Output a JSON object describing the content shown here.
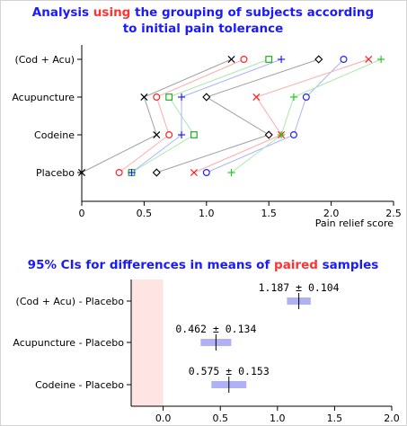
{
  "chart_data": [
    {
      "type": "line",
      "title_parts": [
        {
          "text": "Analysis ",
          "color": "#1a1aff"
        },
        {
          "text": "using",
          "color": "#ff3333"
        },
        {
          "text": " the grouping of subjects according",
          "color": "#1a1aff"
        }
      ],
      "title_line2": "to initial pain tolerance",
      "xlabel": "Pain relief score",
      "xlim": [
        0,
        2.5
      ],
      "xticks": [
        "0",
        "0.5",
        "1.0",
        "1.5",
        "2.0",
        "2.5"
      ],
      "categories": [
        "(Cod + Acu)",
        "Acupuncture",
        "Codeine",
        "Placebo"
      ],
      "series": [
        {
          "marker": "x",
          "color": "#000000",
          "line_color": "#a0a0a0",
          "values": [
            1.2,
            0.5,
            0.6,
            0.0
          ]
        },
        {
          "marker": "circle",
          "color": "#ff2020",
          "line_color": "#ffaaaa",
          "values": [
            1.3,
            0.6,
            0.7,
            0.3
          ]
        },
        {
          "marker": "square",
          "color": "#22aa22",
          "line_color": "#aae8aa",
          "values": [
            1.5,
            0.7,
            0.9,
            0.4
          ]
        },
        {
          "marker": "plus",
          "color": "#2020ff",
          "line_color": "#aab4ff",
          "values": [
            1.6,
            0.8,
            0.8,
            0.4
          ]
        },
        {
          "marker": "diamond",
          "color": "#000000",
          "line_color": "#a0a0a0",
          "values": [
            1.9,
            1.0,
            1.5,
            0.6
          ]
        },
        {
          "marker": "circle",
          "color": "#2020ff",
          "line_color": "#aab4ff",
          "values": [
            2.1,
            1.8,
            1.7,
            1.0
          ]
        },
        {
          "marker": "x",
          "color": "#ff2020",
          "line_color": "#ffaaaa",
          "values": [
            2.3,
            1.4,
            1.6,
            0.9
          ]
        },
        {
          "marker": "plus",
          "color": "#22cc22",
          "line_color": "#aae8aa",
          "values": [
            2.4,
            1.7,
            1.6,
            1.2
          ]
        }
      ]
    },
    {
      "type": "interval",
      "title_parts": [
        {
          "text": "95% CIs for differences in means of ",
          "color": "#1a1aff"
        },
        {
          "text": "paired",
          "color": "#ff3333"
        },
        {
          "text": " samples",
          "color": "#1a1aff"
        }
      ],
      "xlim": [
        -0.28,
        2.0
      ],
      "xticks": [
        "0.0",
        "0.5",
        "1.0",
        "1.5",
        "2.0"
      ],
      "rows": [
        {
          "label": "(Cod + Acu) - Placebo",
          "mean": 1.187,
          "pm": 0.104,
          "annotation": "1.187 ± 0.104"
        },
        {
          "label": "Acupuncture - Placebo",
          "mean": 0.462,
          "pm": 0.134,
          "annotation": "0.462 ± 0.134"
        },
        {
          "label": "Codeine - Placebo",
          "mean": 0.575,
          "pm": 0.153,
          "annotation": "0.575 ± 0.153"
        }
      ],
      "negative_region_color": "#ffe4e4",
      "bar_color": "#b0b0f4"
    }
  ]
}
